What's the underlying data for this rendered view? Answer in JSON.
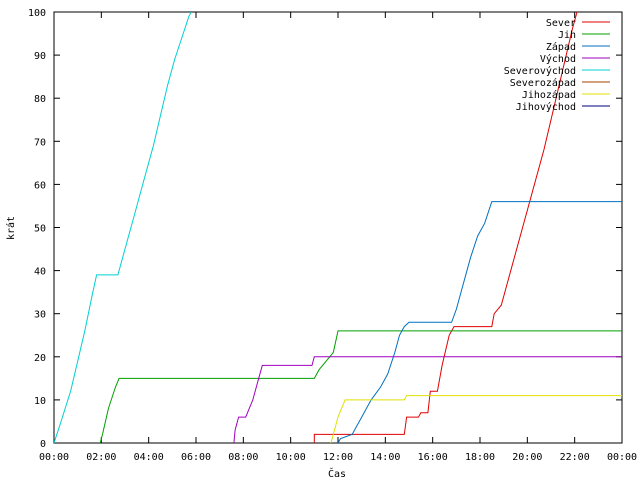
{
  "chart_data": {
    "type": "line",
    "title": "",
    "xlabel": "Čas",
    "ylabel": "krát",
    "xlim": [
      0,
      24
    ],
    "ylim": [
      0,
      100
    ],
    "x_ticks": [
      "00:00",
      "02:00",
      "04:00",
      "06:00",
      "08:00",
      "10:00",
      "12:00",
      "14:00",
      "16:00",
      "18:00",
      "20:00",
      "22:00",
      "00:00"
    ],
    "y_ticks": [
      0,
      10,
      20,
      30,
      40,
      50,
      60,
      70,
      80,
      90,
      100
    ],
    "grid": false,
    "legend_position": "top-right",
    "series": [
      {
        "name": "Sever",
        "color": "#e00000",
        "points": [
          [
            11.0,
            0
          ],
          [
            11.0,
            2
          ],
          [
            12.6,
            2
          ],
          [
            12.6,
            2
          ],
          [
            14.8,
            2
          ],
          [
            14.9,
            6
          ],
          [
            15.4,
            6
          ],
          [
            15.5,
            7
          ],
          [
            15.8,
            7
          ],
          [
            15.9,
            12
          ],
          [
            16.2,
            12
          ],
          [
            16.4,
            18
          ],
          [
            16.7,
            25
          ],
          [
            16.9,
            27
          ],
          [
            18.5,
            27
          ],
          [
            18.6,
            30
          ],
          [
            18.9,
            32
          ],
          [
            19.2,
            38
          ],
          [
            19.5,
            44
          ],
          [
            19.8,
            50
          ],
          [
            20.1,
            56
          ],
          [
            20.4,
            62
          ],
          [
            20.7,
            68
          ],
          [
            21.0,
            75
          ],
          [
            21.3,
            82
          ],
          [
            21.6,
            89
          ],
          [
            21.9,
            96
          ],
          [
            22.1,
            100
          ]
        ]
      },
      {
        "name": "Jih",
        "color": "#00a000",
        "points": [
          [
            1.95,
            0
          ],
          [
            2.05,
            2
          ],
          [
            2.3,
            8
          ],
          [
            2.6,
            13
          ],
          [
            2.75,
            15
          ],
          [
            11.0,
            15
          ],
          [
            11.2,
            17
          ],
          [
            11.5,
            19
          ],
          [
            11.8,
            21
          ],
          [
            12.0,
            26
          ],
          [
            24,
            26
          ]
        ]
      },
      {
        "name": "Západ",
        "color": "#0070c0",
        "points": [
          [
            12.0,
            0
          ],
          [
            12.1,
            1
          ],
          [
            12.6,
            2
          ],
          [
            13.0,
            6
          ],
          [
            13.4,
            10
          ],
          [
            13.8,
            13
          ],
          [
            14.1,
            16
          ],
          [
            14.4,
            21
          ],
          [
            14.6,
            25
          ],
          [
            14.8,
            27
          ],
          [
            15.0,
            28
          ],
          [
            16.8,
            28
          ],
          [
            17.0,
            31
          ],
          [
            17.3,
            37
          ],
          [
            17.6,
            43
          ],
          [
            17.9,
            48
          ],
          [
            18.2,
            51
          ],
          [
            18.5,
            56
          ],
          [
            24,
            56
          ]
        ]
      },
      {
        "name": "Východ",
        "color": "#a000c0",
        "points": [
          [
            7.6,
            0
          ],
          [
            7.65,
            3
          ],
          [
            7.8,
            6
          ],
          [
            8.1,
            6
          ],
          [
            8.4,
            10
          ],
          [
            8.6,
            14
          ],
          [
            8.8,
            18
          ],
          [
            10.9,
            18
          ],
          [
            11.0,
            20
          ],
          [
            24,
            20
          ]
        ]
      },
      {
        "name": "Severovýchod",
        "color": "#00d0d0",
        "points": [
          [
            0,
            0
          ],
          [
            0.3,
            5
          ],
          [
            0.7,
            12
          ],
          [
            1.0,
            19
          ],
          [
            1.3,
            26
          ],
          [
            1.6,
            34
          ],
          [
            1.8,
            39
          ],
          [
            2.7,
            39
          ],
          [
            3.0,
            45
          ],
          [
            3.4,
            53
          ],
          [
            3.8,
            61
          ],
          [
            4.2,
            69
          ],
          [
            4.5,
            76
          ],
          [
            4.8,
            83
          ],
          [
            5.1,
            89
          ],
          [
            5.4,
            94
          ],
          [
            5.7,
            99
          ],
          [
            5.8,
            100
          ]
        ]
      },
      {
        "name": "Severozápad",
        "color": "#a04000",
        "points": []
      },
      {
        "name": "Jihozápad",
        "color": "#e0e000",
        "points": [
          [
            11.7,
            0
          ],
          [
            11.8,
            2
          ],
          [
            12.0,
            6
          ],
          [
            12.3,
            10
          ],
          [
            14.8,
            10
          ],
          [
            14.9,
            11
          ],
          [
            24,
            11
          ]
        ]
      },
      {
        "name": "Jihovýchod",
        "color": "#000080",
        "points": []
      }
    ]
  }
}
